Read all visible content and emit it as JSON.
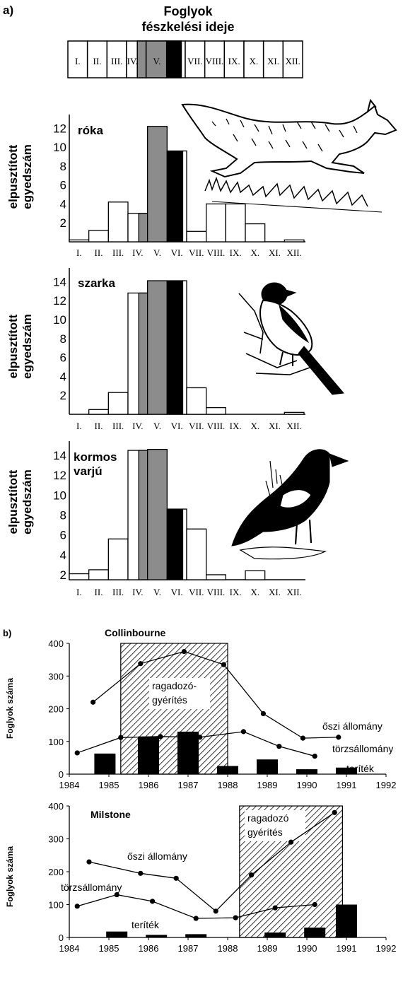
{
  "panel_a": {
    "label": "a)",
    "title_line1": "Foglyok",
    "title_line2": "fészkelési ideje",
    "months": [
      "I.",
      "II.",
      "III.",
      "IV.",
      "V.",
      "VI.",
      "VII.",
      "VIII.",
      "IX.",
      "X.",
      "XI.",
      "XII."
    ],
    "colors": {
      "white": "#ffffff",
      "grey": "#8c8c8c",
      "black": "#000000"
    }
  },
  "panel_b": {
    "label": "b)"
  },
  "chart_data": [
    {
      "type": "bar",
      "title": "róka",
      "ylabel_line1": "elpusztított",
      "ylabel_line2": "egyedszám",
      "categories": [
        "I.",
        "II.",
        "III.",
        "IV.",
        "V.",
        "VI.",
        "VII.",
        "VIII.",
        "IX.",
        "X.",
        "XI.",
        "XII."
      ],
      "values": [
        0.2,
        1.2,
        4.2,
        3.0,
        12.2,
        9.6,
        1.1,
        4.0,
        4.0,
        1.9,
        0,
        0.2
      ],
      "ylim": [
        0,
        13
      ],
      "yticks": [
        2,
        4,
        6,
        8,
        10,
        12
      ]
    },
    {
      "type": "bar",
      "title": "szarka",
      "ylabel_line1": "elpusztított",
      "ylabel_line2": "egyedszám",
      "categories": [
        "I.",
        "II.",
        "III.",
        "IV.",
        "V.",
        "VI.",
        "VII.",
        "VIII.",
        "IX.",
        "X.",
        "XI.",
        "XII."
      ],
      "values": [
        0,
        0.5,
        2.3,
        12.8,
        14.1,
        14.1,
        2.8,
        0.7,
        0,
        0,
        0,
        0.2
      ],
      "ylim": [
        0,
        15
      ],
      "yticks": [
        2,
        4,
        6,
        8,
        10,
        12,
        14
      ]
    },
    {
      "type": "bar",
      "title": "kormos varjú",
      "title_line1": "kormos",
      "title_line2": "varjú",
      "ylabel_line1": "elpusztított",
      "ylabel_line2": "egyedszám",
      "categories": [
        "I.",
        "II.",
        "III.",
        "IV.",
        "V.",
        "VI.",
        "VII.",
        "VIII.",
        "IX.",
        "X.",
        "XI.",
        "XII."
      ],
      "values": [
        2.1,
        2.5,
        5.6,
        14.5,
        14.6,
        8.6,
        6.6,
        2.0,
        1.5,
        2.4,
        1.5,
        1.5
      ],
      "ylim": [
        1.5,
        15
      ],
      "yticks": [
        2,
        4,
        6,
        8,
        10,
        12,
        14
      ]
    },
    {
      "type": "line",
      "title": "Collinbourne",
      "ylabel": "Foglyok száma",
      "xlim": [
        1984,
        1992
      ],
      "ylim": [
        0,
        400
      ],
      "xticks": [
        1984,
        1985,
        1986,
        1987,
        1988,
        1989,
        1990,
        1991,
        1992
      ],
      "yticks": [
        0,
        100,
        200,
        300,
        400
      ],
      "shaded_label_line1": "ragadozó-",
      "shaded_label_line2": "gyérítés",
      "shaded_range": [
        1985.3,
        1988.0
      ],
      "series": [
        {
          "name": "őszi állomány",
          "x": [
            1984.6,
            1985.8,
            1986.9,
            1987.9,
            1988.9,
            1989.9,
            1990.8
          ],
          "y": [
            220,
            338,
            375,
            335,
            185,
            110,
            113
          ]
        },
        {
          "name": "törzsállomány",
          "x": [
            1984.2,
            1985.3,
            1986.3,
            1987.3,
            1988.4,
            1989.3,
            1990.2
          ],
          "y": [
            65,
            112,
            115,
            113,
            130,
            85,
            55
          ]
        }
      ],
      "bars": {
        "name": "teríték",
        "x": [
          1984.9,
          1986.0,
          1987.0,
          1988.0,
          1989.0,
          1990.0,
          1991.0
        ],
        "y": [
          63,
          115,
          130,
          25,
          45,
          15,
          20
        ]
      }
    },
    {
      "type": "line",
      "title": "Milstone",
      "ylabel": "Foglyok száma",
      "xlim": [
        1984,
        1992
      ],
      "ylim": [
        0,
        400
      ],
      "xticks": [
        1984,
        1985,
        1986,
        1987,
        1988,
        1989,
        1990,
        1991,
        1992
      ],
      "yticks": [
        0,
        100,
        200,
        300,
        400
      ],
      "shaded_label_line1": "ragadozó",
      "shaded_label_line2": "gyérítés",
      "shaded_range": [
        1988.3,
        1990.9
      ],
      "series": [
        {
          "name": "őszi állomány",
          "x": [
            1984.5,
            1985.8,
            1986.7,
            1987.7,
            1988.6,
            1989.6,
            1990.7
          ],
          "y": [
            230,
            195,
            180,
            80,
            190,
            290,
            380
          ]
        },
        {
          "name": "törzsállomány",
          "x": [
            1984.2,
            1985.2,
            1986.1,
            1987.2,
            1988.2,
            1989.2,
            1990.2
          ],
          "y": [
            95,
            130,
            110,
            58,
            60,
            90,
            100
          ]
        }
      ],
      "bars": {
        "name": "teríték",
        "x": [
          1985.2,
          1986.2,
          1987.2,
          1989.2,
          1990.2,
          1991.0
        ],
        "y": [
          18,
          8,
          10,
          15,
          30,
          100
        ]
      }
    }
  ]
}
